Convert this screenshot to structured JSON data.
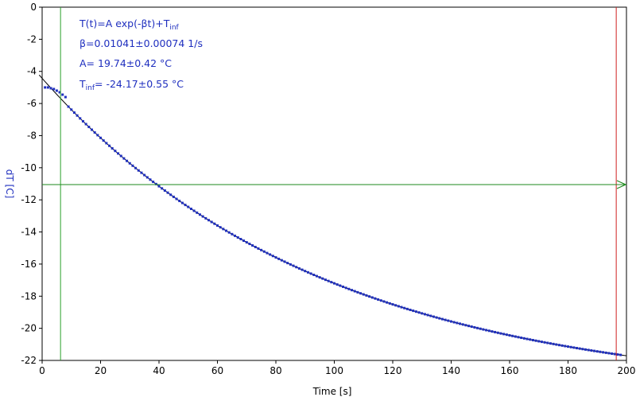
{
  "chart_data": {
    "type": "scatter",
    "xlabel": "Time [s]",
    "ylabel": "dT [C]",
    "xlim": [
      0,
      200
    ],
    "ylim": [
      -22,
      0
    ],
    "x_ticks": [
      0,
      20,
      40,
      60,
      80,
      100,
      120,
      140,
      160,
      180,
      200
    ],
    "y_ticks": [
      0,
      -2,
      -4,
      -6,
      -8,
      -10,
      -12,
      -14,
      -16,
      -18,
      -20,
      -22
    ],
    "grid": false,
    "fit": {
      "model": "T(t)=A exp(-βt)+T_inf",
      "beta": 0.01041,
      "A": 19.74,
      "T_inf": -24.17
    },
    "annotations": {
      "line1_main": "T(t)=A exp(-βt)+T",
      "line1_sub": "inf",
      "line2": "β=0.01041±0.00074 1/s",
      "line3": "A= 19.74±0.42 °C",
      "line4_main": "T",
      "line4_sub": "inf",
      "line4_rest": "= -24.17±0.55 °C"
    },
    "cursors": {
      "vertical_green_x": 6.3,
      "vertical_red_x": 196.5,
      "horizontal_green_y": -11.05
    },
    "series": [
      {
        "x_start": 1,
        "x_end": 198,
        "x_step": 1,
        "early_points": [
          [
            1,
            -5.0
          ],
          [
            2,
            -5.0
          ],
          [
            3,
            -5.05
          ],
          [
            4,
            -5.1
          ],
          [
            5,
            -5.2
          ],
          [
            6,
            -5.3
          ],
          [
            7,
            -5.45
          ],
          [
            8,
            -5.6
          ]
        ]
      }
    ],
    "colors": {
      "data": "#1f2fbf",
      "fit": "#000000",
      "cursor_green": "#2aa02a",
      "cursor_red": "#d02020",
      "hline": "#1e8a1e",
      "axis": "#000000"
    }
  }
}
